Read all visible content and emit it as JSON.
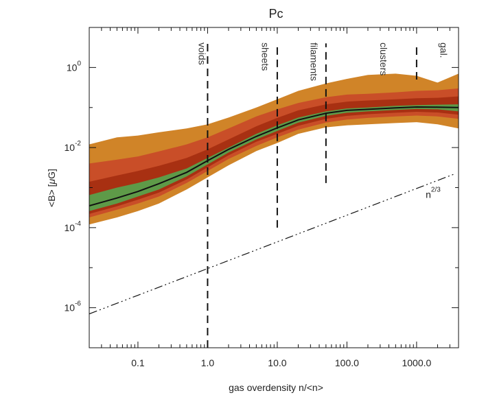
{
  "chart_data": {
    "type": "area",
    "title": "Pc",
    "xlabel": "gas overdensity n/<n>",
    "ylabel_parts": [
      "<B> [",
      "μ",
      "G]"
    ],
    "xscale": "log",
    "yscale": "log",
    "xlim": [
      0.02,
      4000
    ],
    "ylim": [
      1e-07,
      10
    ],
    "x_ticks": [
      {
        "value": 0.1,
        "label": "0.1"
      },
      {
        "value": 1,
        "label": "1.0"
      },
      {
        "value": 10,
        "label": "10.0"
      },
      {
        "value": 100,
        "label": "100.0"
      },
      {
        "value": 1000,
        "label": "1000.0"
      }
    ],
    "y_ticks": [
      {
        "value": 1,
        "base": "10",
        "exp": "0"
      },
      {
        "value": 0.01,
        "base": "10",
        "exp": "-2"
      },
      {
        "value": 0.0001,
        "base": "10",
        "exp": "-4"
      },
      {
        "value": 1e-06,
        "base": "10",
        "exp": "-6"
      }
    ],
    "x": [
      0.02,
      0.05,
      0.1,
      0.2,
      0.5,
      1,
      2,
      5,
      10,
      20,
      50,
      100,
      200,
      500,
      1000,
      2000,
      4000
    ],
    "bands": [
      {
        "name": "outer",
        "color": "#D08428",
        "lower": [
          0.00012,
          0.00018,
          0.00026,
          0.0004,
          0.0009,
          0.0018,
          0.0036,
          0.0082,
          0.013,
          0.022,
          0.032,
          0.036,
          0.038,
          0.041,
          0.043,
          0.038,
          0.03
        ],
        "upper": [
          0.012,
          0.018,
          0.02,
          0.024,
          0.03,
          0.038,
          0.056,
          0.1,
          0.16,
          0.26,
          0.4,
          0.52,
          0.65,
          0.7,
          0.62,
          0.42,
          0.7
        ]
      },
      {
        "name": "outer-mid",
        "color": "#C94E28",
        "lower": [
          0.00018,
          0.00028,
          0.0004,
          0.0006,
          0.0013,
          0.0026,
          0.0052,
          0.011,
          0.018,
          0.028,
          0.042,
          0.05,
          0.055,
          0.06,
          0.063,
          0.06,
          0.052
        ],
        "upper": [
          0.004,
          0.005,
          0.006,
          0.008,
          0.012,
          0.018,
          0.03,
          0.06,
          0.09,
          0.13,
          0.18,
          0.21,
          0.22,
          0.24,
          0.26,
          0.27,
          0.3
        ]
      },
      {
        "name": "inner-mid",
        "color": "#A83012",
        "lower": [
          0.00022,
          0.00034,
          0.0005,
          0.00075,
          0.0016,
          0.0032,
          0.0064,
          0.014,
          0.022,
          0.035,
          0.052,
          0.062,
          0.068,
          0.074,
          0.078,
          0.075,
          0.066
        ],
        "upper": [
          0.0014,
          0.002,
          0.0026,
          0.0035,
          0.0055,
          0.009,
          0.016,
          0.034,
          0.055,
          0.085,
          0.12,
          0.14,
          0.15,
          0.16,
          0.17,
          0.175,
          0.19
        ]
      },
      {
        "name": "inner",
        "color": "#5E9A48",
        "lower": [
          0.00026,
          0.0004,
          0.0006,
          0.0009,
          0.0019,
          0.0038,
          0.0075,
          0.016,
          0.026,
          0.042,
          0.062,
          0.074,
          0.08,
          0.087,
          0.092,
          0.09,
          0.08
        ],
        "upper": [
          0.00065,
          0.001,
          0.0013,
          0.0018,
          0.003,
          0.0055,
          0.01,
          0.022,
          0.036,
          0.056,
          0.08,
          0.095,
          0.1,
          0.11,
          0.115,
          0.118,
          0.12
        ]
      }
    ],
    "median": {
      "name": "median",
      "color": "#111111",
      "values": [
        0.00035,
        0.00055,
        0.0008,
        0.00125,
        0.0024,
        0.0047,
        0.009,
        0.019,
        0.031,
        0.049,
        0.072,
        0.085,
        0.09,
        0.098,
        0.103,
        0.102,
        0.1
      ]
    },
    "reference_line": {
      "label_base": "n",
      "label_exp": "2/3",
      "slope": 0.6667,
      "x0": 0.02,
      "y0": 7e-07
    },
    "regions": [
      {
        "label": "voids",
        "boundary_x": 1,
        "y_range": [
          1e-07,
          4
        ]
      },
      {
        "label": "sheets",
        "boundary_x": 10,
        "y_range": [
          0.0001,
          4
        ]
      },
      {
        "label": "filaments",
        "boundary_x": 50,
        "y_range": [
          0.0013,
          4
        ]
      },
      {
        "label": "clusters",
        "boundary_x": 1000,
        "y_range": [
          0.5,
          4
        ]
      },
      {
        "label": "gal.",
        "boundary_x": null,
        "y_range": null
      }
    ],
    "region_label_x": [
      0.75,
      6,
      30,
      300,
      2200
    ]
  }
}
